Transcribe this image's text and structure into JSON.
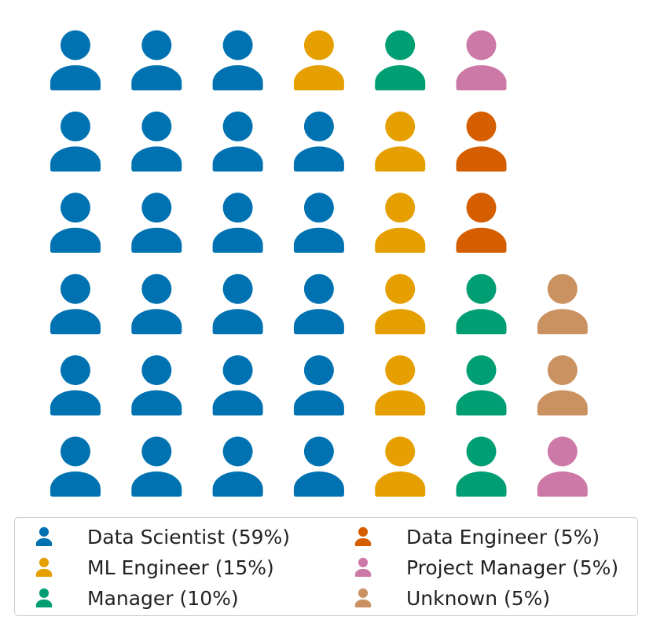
{
  "chart_data": {
    "type": "waffle",
    "title": "",
    "icon": "person-icon",
    "total_icons": 39,
    "layout": "6 rows, filled column by column from bottom-left; columns of 6 except last of 3",
    "categories": [
      {
        "name": "Data Scientist",
        "percent": 59,
        "count": 23,
        "color": "#0072b2",
        "label": "Data Scientist (59%)"
      },
      {
        "name": "ML Engineer",
        "percent": 15,
        "count": 6,
        "color": "#e69f00",
        "label": "ML Engineer (15%)"
      },
      {
        "name": "Manager",
        "percent": 10,
        "count": 4,
        "color": "#009e73",
        "label": "Manager (10%)"
      },
      {
        "name": "Data Engineer",
        "percent": 5,
        "count": 2,
        "color": "#d55e00",
        "label": "Data Engineer (5%)"
      },
      {
        "name": "Project Manager",
        "percent": 5,
        "count": 2,
        "color": "#cc79a7",
        "label": "Project Manager (5%)"
      },
      {
        "name": "Unknown",
        "percent": 5,
        "count": 2,
        "color": "#ca9161",
        "label": "Unknown (5%)"
      }
    ],
    "legend": {
      "position": "bottom",
      "columns": 2
    }
  }
}
